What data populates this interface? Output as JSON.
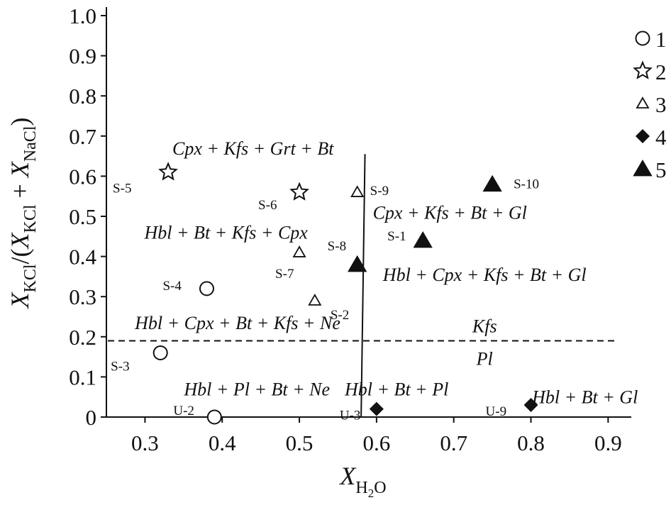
{
  "chart_data": {
    "type": "scatter",
    "xlim": [
      0.25,
      0.93
    ],
    "ylim": [
      0,
      1.0
    ],
    "grid": false,
    "x_ticks": [
      "0.3",
      "0.4",
      "0.5",
      "0.6",
      "0.7",
      "0.8",
      "0.9"
    ],
    "y_ticks": [
      "0",
      "0.1",
      "0.2",
      "0.3",
      "0.4",
      "0.5",
      "0.6",
      "0.7",
      "0.8",
      "0.9",
      "1.0"
    ],
    "legend_position": "right",
    "series": [
      {
        "name": "1",
        "marker": "open-circle",
        "points": [
          {
            "label": "S-4",
            "x": 0.38,
            "y": 0.32
          },
          {
            "label": "S-3",
            "x": 0.32,
            "y": 0.16
          },
          {
            "label": "U-2",
            "x": 0.39,
            "y": 0.0
          }
        ]
      },
      {
        "name": "2",
        "marker": "open-star",
        "points": [
          {
            "label": "S-5",
            "x": 0.33,
            "y": 0.61
          },
          {
            "label": "S-6",
            "x": 0.5,
            "y": 0.56
          }
        ]
      },
      {
        "name": "3",
        "marker": "open-triangle",
        "points": [
          {
            "label": "S-9",
            "x": 0.575,
            "y": 0.56
          },
          {
            "label": "S-7",
            "x": 0.5,
            "y": 0.41
          },
          {
            "label": "S-2",
            "x": 0.52,
            "y": 0.29
          }
        ]
      },
      {
        "name": "4",
        "marker": "filled-diamond",
        "points": [
          {
            "label": "U-3",
            "x": 0.6,
            "y": 0.02
          },
          {
            "label": "U-9",
            "x": 0.8,
            "y": 0.03
          }
        ]
      },
      {
        "name": "5",
        "marker": "filled-triangle",
        "points": [
          {
            "label": "S-10",
            "x": 0.75,
            "y": 0.58
          },
          {
            "label": "S-1",
            "x": 0.66,
            "y": 0.44
          },
          {
            "label": "S-8",
            "x": 0.575,
            "y": 0.38
          }
        ]
      }
    ],
    "boundary_lines": [
      {
        "style": "solid",
        "points": [
          [
            0.58,
            0.0
          ],
          [
            0.585,
            0.655
          ]
        ]
      },
      {
        "style": "dashed",
        "points": [
          [
            0.25,
            0.19
          ],
          [
            0.93,
            0.19
          ]
        ],
        "label_above": "Kfs",
        "label_below": "Pl"
      }
    ],
    "field_labels": [
      {
        "text": "Cpx + Kfs + Grt + Bt",
        "x": 0.44,
        "y": 0.67
      },
      {
        "text": "Hbl + Bt + Kfs + Cpx",
        "x": 0.405,
        "y": 0.46
      },
      {
        "text": "Cpx + Kfs + Bt + Gl",
        "x": 0.695,
        "y": 0.51
      },
      {
        "text": "Hbl + Cpx + Kfs + Bt + Gl",
        "x": 0.74,
        "y": 0.355
      },
      {
        "text": "Hbl + Cpx + Bt + Kfs + Ne",
        "x": 0.42,
        "y": 0.235
      },
      {
        "text": "Hbl + Pl + Bt + Ne",
        "x": 0.445,
        "y": 0.07
      },
      {
        "text": "Hbl + Bt + Pl",
        "x": 0.626,
        "y": 0.07
      },
      {
        "text": "Hbl + Bt + Gl",
        "x": 0.87,
        "y": 0.05
      }
    ]
  }
}
